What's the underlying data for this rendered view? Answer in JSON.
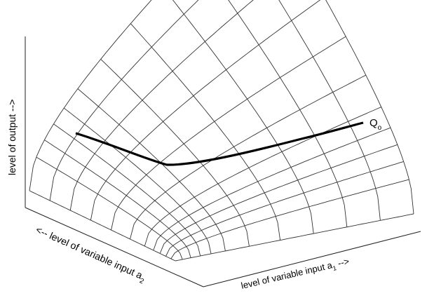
{
  "figure": {
    "y_axis_label": "level of output -->",
    "x_axis_label": {
      "text": "level of variable input a",
      "subscript": "1",
      "suffix": " -->"
    },
    "z_axis_label": {
      "prefix": "<-- ",
      "text": "level of variable input a",
      "subscript": "2"
    },
    "isoquant_label": {
      "text": "Q",
      "subscript": "o"
    }
  },
  "colors": {
    "surface_line": "#333333",
    "axis_line": "#222222",
    "isoquant": "#000000",
    "background": "#ffffff"
  }
}
